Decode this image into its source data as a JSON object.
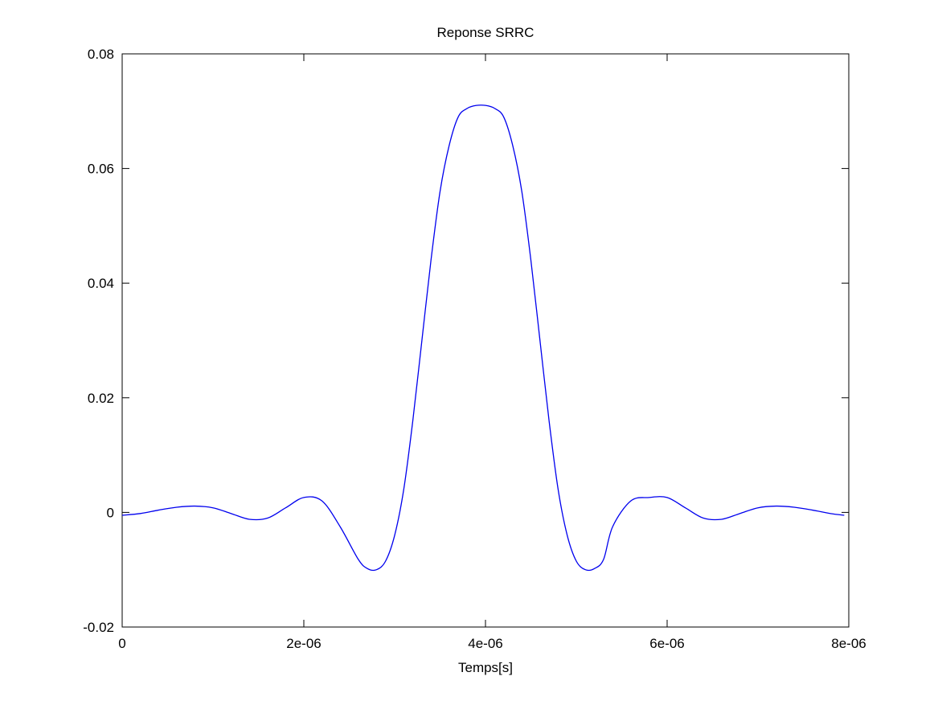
{
  "chart_data": {
    "type": "line",
    "title": "Reponse SRRC",
    "xlabel": "Temps[s]",
    "ylabel": "",
    "xlim": [
      0,
      8e-06
    ],
    "ylim": [
      -0.02,
      0.08
    ],
    "xticks": [
      0,
      2e-06,
      4e-06,
      6e-06,
      8e-06
    ],
    "xtick_labels": [
      "0",
      "2e-06",
      "4e-06",
      "6e-06",
      "8e-06"
    ],
    "yticks": [
      -0.02,
      0,
      0.02,
      0.04,
      0.06,
      0.08
    ],
    "ytick_labels": [
      "-0.02",
      "0",
      "0.02",
      "0.04",
      "0.06",
      "0.08"
    ],
    "grid": false,
    "legend": "none",
    "line_color": "#0000ee",
    "series": [
      {
        "x": [
          0,
          2e-07,
          4e-07,
          6e-07,
          8e-07,
          1e-06,
          1.2e-06,
          1.4e-06,
          1.6e-06,
          1.8e-06,
          2e-06,
          2.2e-06,
          2.4e-06,
          2.6e-06,
          2.7e-06,
          2.8e-06,
          2.9e-06,
          3e-06,
          3.1e-06,
          3.2e-06,
          3.3e-06,
          3.4e-06,
          3.5e-06,
          3.6e-06,
          3.7e-06,
          3.8e-06,
          3.9e-06,
          4e-06,
          4.1e-06,
          4.2e-06,
          4.3e-06,
          4.4e-06,
          4.5e-06,
          4.6e-06,
          4.7e-06,
          4.8e-06,
          4.9e-06,
          5e-06,
          5.1e-06,
          5.2e-06,
          5.3e-06,
          5.4e-06,
          5.6e-06,
          5.8e-06,
          6e-06,
          6.2e-06,
          6.4e-06,
          6.6e-06,
          6.8e-06,
          7e-06,
          7.2e-06,
          7.4e-06,
          7.6e-06,
          7.8e-06,
          7.95e-06
        ],
        "y": [
          -0.0005,
          -0.0002,
          0.0004,
          0.0009,
          0.0011,
          0.0008,
          -0.0002,
          -0.0012,
          -0.001,
          0.0008,
          0.0026,
          0.002,
          -0.0025,
          -0.0082,
          -0.0098,
          -0.01,
          -0.0085,
          -0.004,
          0.004,
          0.016,
          0.03,
          0.044,
          0.056,
          0.064,
          0.069,
          0.0705,
          0.071,
          0.071,
          0.0705,
          0.069,
          0.064,
          0.056,
          0.044,
          0.03,
          0.016,
          0.004,
          -0.004,
          -0.0085,
          -0.01,
          -0.0098,
          -0.0082,
          -0.0025,
          0.002,
          0.0026,
          0.0026,
          0.0008,
          -0.001,
          -0.0012,
          -0.0002,
          0.0008,
          0.0011,
          0.0009,
          0.0004,
          -0.0002,
          -0.0005
        ]
      }
    ]
  }
}
